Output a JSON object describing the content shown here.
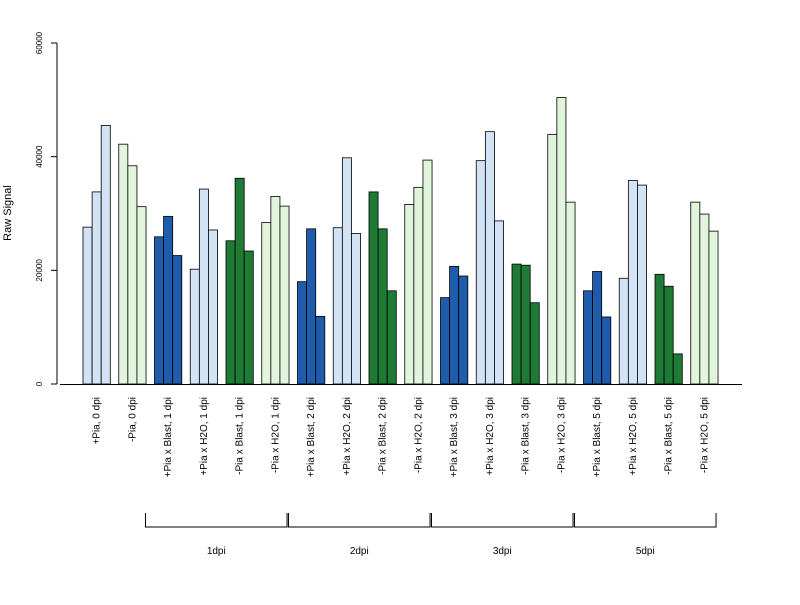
{
  "chart_data": {
    "type": "bar",
    "ylabel": "Raw Signal",
    "ylim": [
      0,
      60000
    ],
    "yticks": [
      0,
      20000,
      40000,
      60000
    ],
    "grid": false,
    "legend": "none",
    "palette": {
      "light_blue": "#d2e3f5",
      "light_green": "#e0f5dc",
      "dark_blue": "#1f5cab",
      "dark_green": "#1f7a35",
      "outline": "#000000"
    },
    "categories": [
      {
        "label": "+Pia, 0 dpi",
        "color": "light_blue",
        "values": [
          27600,
          33800,
          45500
        ]
      },
      {
        "label": "-Pia, 0 dpi",
        "color": "light_green",
        "values": [
          42200,
          38400,
          31200
        ]
      },
      {
        "label": "+Pia x Blast, 1 dpi",
        "color": "dark_blue",
        "values": [
          25900,
          29500,
          22600
        ]
      },
      {
        "label": "+Pia x H2O, 1 dpi",
        "color": "light_blue",
        "values": [
          20200,
          34300,
          27100
        ]
      },
      {
        "label": "-Pia x Blast, 1 dpi",
        "color": "dark_green",
        "values": [
          25200,
          36200,
          23400
        ]
      },
      {
        "label": "-Pia x H2O, 1 dpi",
        "color": "light_green",
        "values": [
          28400,
          33000,
          31300
        ]
      },
      {
        "label": "+Pia x Blast, 2 dpi",
        "color": "dark_blue",
        "values": [
          18000,
          27300,
          11900
        ]
      },
      {
        "label": "+Pia x H2O, 2 dpi",
        "color": "light_blue",
        "values": [
          27500,
          39800,
          26500
        ]
      },
      {
        "label": "-Pia x Blast, 2 dpi",
        "color": "dark_green",
        "values": [
          33800,
          27300,
          16400
        ]
      },
      {
        "label": "-Pia x H2O, 2 dpi",
        "color": "light_green",
        "values": [
          31600,
          34600,
          39400
        ]
      },
      {
        "label": "+Pia x Blast, 3 dpi",
        "color": "dark_blue",
        "values": [
          15200,
          20700,
          19000
        ]
      },
      {
        "label": "+Pia x H2O, 3 dpi",
        "color": "light_blue",
        "values": [
          39300,
          44400,
          28700
        ]
      },
      {
        "label": "-Pia x Blast, 3 dpi",
        "color": "dark_green",
        "values": [
          21100,
          20900,
          14300
        ]
      },
      {
        "label": "-Pia x H2O, 3 dpi",
        "color": "light_green",
        "values": [
          43900,
          50400,
          32000
        ]
      },
      {
        "label": "+Pia x Blast, 5 dpi",
        "color": "dark_blue",
        "values": [
          16400,
          19800,
          11800
        ]
      },
      {
        "label": "+Pia x H2O, 5 dpi",
        "color": "light_blue",
        "values": [
          18600,
          35800,
          35000
        ]
      },
      {
        "label": "-Pia x Blast, 5 dpi",
        "color": "dark_green",
        "values": [
          19300,
          17200,
          5300
        ]
      },
      {
        "label": "-Pia x H2O, 5 dpi",
        "color": "light_green",
        "values": [
          32000,
          29900,
          26900
        ]
      }
    ],
    "groups": [
      {
        "label": "1dpi",
        "from": 2,
        "to": 5
      },
      {
        "label": "2dpi",
        "from": 6,
        "to": 9
      },
      {
        "label": "3dpi",
        "from": 10,
        "to": 13
      },
      {
        "label": "5dpi",
        "from": 14,
        "to": 17
      }
    ]
  }
}
